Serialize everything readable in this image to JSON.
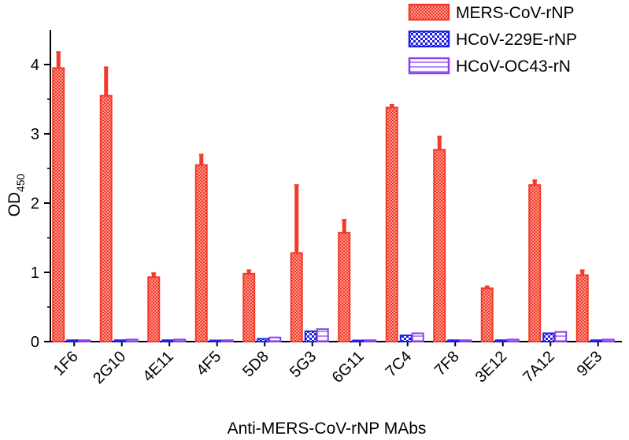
{
  "chart_data": {
    "type": "bar",
    "xlabel": "Anti-MERS-CoV-rNP MAbs",
    "ylabel_main": "OD",
    "ylabel_sub": "450",
    "ylim": [
      0,
      4.5
    ],
    "yticks": [
      0,
      1,
      2,
      3,
      4
    ],
    "legend_position": "top-right",
    "categories": [
      "1F6",
      "2G10",
      "4E11",
      "4F5",
      "5D8",
      "5G3",
      "6G11",
      "7C4",
      "7F8",
      "3E12",
      "7A12",
      "9E3"
    ],
    "series": [
      {
        "name": "MERS-CoV-rNP",
        "color": "#f23a2a",
        "pattern": "checker-light",
        "values": [
          3.95,
          3.55,
          0.93,
          2.55,
          0.98,
          1.28,
          1.57,
          3.38,
          2.77,
          0.77,
          2.26,
          0.96
        ],
        "errors": [
          0.23,
          0.41,
          0.06,
          0.15,
          0.05,
          0.98,
          0.19,
          0.04,
          0.19,
          0.03,
          0.07,
          0.07
        ]
      },
      {
        "name": "HCoV-229E-rNP",
        "color": "#1f1fe6",
        "pattern": "checker-dark",
        "values": [
          0.02,
          0.02,
          0.02,
          0.01,
          0.04,
          0.15,
          0.01,
          0.09,
          0.02,
          0.02,
          0.12,
          0.02
        ],
        "errors": [
          0,
          0,
          0,
          0,
          0,
          0.01,
          0,
          0.01,
          0,
          0,
          0.01,
          0
        ]
      },
      {
        "name": "HCoV-OC43-rN",
        "color": "#8a3ff0",
        "pattern": "stripes",
        "values": [
          0.02,
          0.03,
          0.03,
          0.02,
          0.06,
          0.18,
          0.02,
          0.12,
          0.02,
          0.03,
          0.14,
          0.03
        ],
        "errors": [
          0,
          0,
          0,
          0,
          0,
          0.01,
          0,
          0.01,
          0,
          0,
          0.01,
          0
        ]
      }
    ]
  }
}
